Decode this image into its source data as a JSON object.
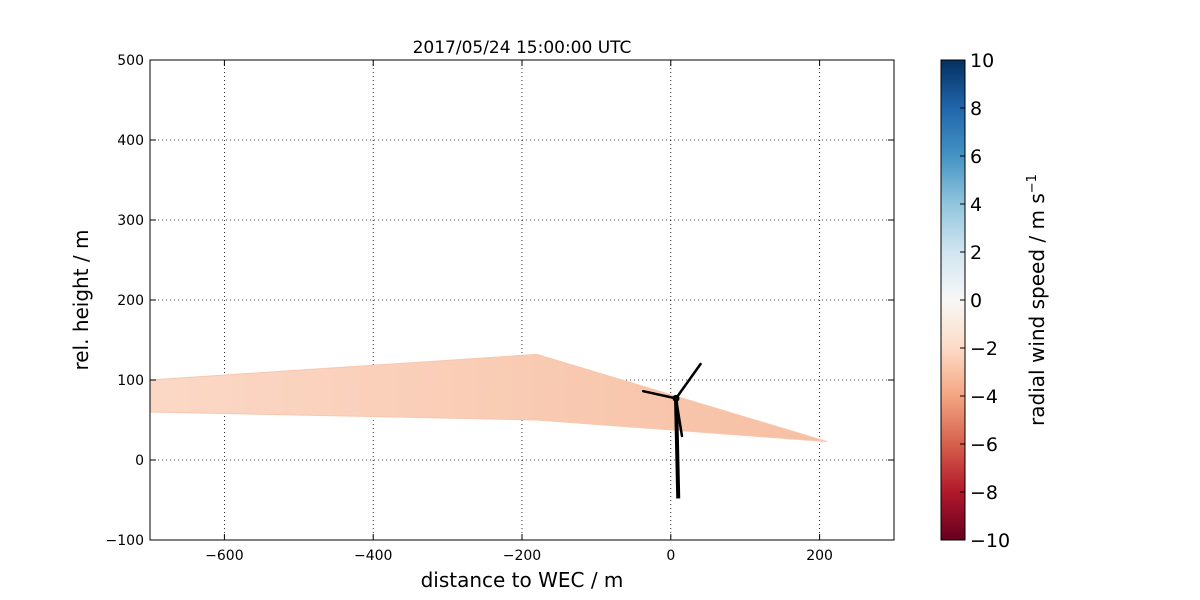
{
  "chart_data": {
    "type": "scatter",
    "title": "2017/05/24 15:00:00 UTC",
    "xlabel": "distance to WEC / m",
    "ylabel": "rel. height / m",
    "xlim": [
      -700,
      300
    ],
    "ylim": [
      -100,
      500
    ],
    "xticks": [
      -600,
      -400,
      -200,
      0,
      200
    ],
    "yticks": [
      -100,
      0,
      100,
      200,
      300,
      400,
      500
    ],
    "grid": true,
    "scan_region": {
      "description_units": "distance / m, rel. height / m",
      "polygon": [
        [
          -700,
          100
        ],
        [
          -180,
          132
        ],
        [
          210,
          23
        ],
        [
          -180,
          50
        ],
        [
          -700,
          60
        ]
      ],
      "radial_wind_speed_range": [
        -3,
        -1.5
      ]
    },
    "turbine": {
      "hub": [
        7,
        77
      ],
      "tower_base": [
        10,
        -48
      ],
      "blade_tips": [
        [
          -37,
          86
        ],
        [
          40,
          120
        ],
        [
          15,
          30
        ]
      ]
    },
    "colorbar": {
      "label": "radial wind speed / m s",
      "label_superscript": "−1",
      "range": [
        -10,
        10
      ],
      "ticks": [
        10,
        8,
        6,
        4,
        2,
        0,
        -2,
        -4,
        -6,
        -8,
        -10
      ],
      "colormap": [
        "#67001f",
        "#b2182b",
        "#d6604d",
        "#f4a582",
        "#fddbc7",
        "#f7f7f7",
        "#d1e5f0",
        "#92c5de",
        "#4393c3",
        "#2166ac",
        "#053061"
      ]
    }
  }
}
